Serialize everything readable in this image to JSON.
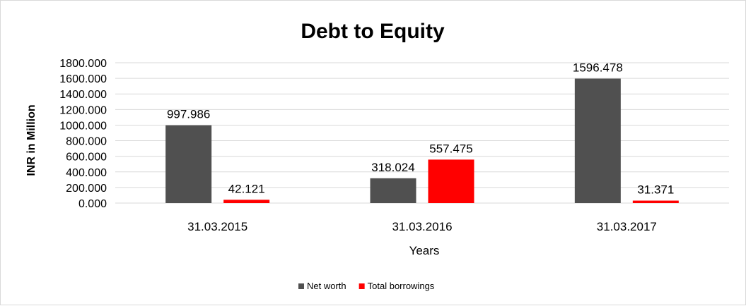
{
  "chart_data": {
    "type": "bar",
    "title": "Debt to Equity",
    "xlabel": "Years",
    "ylabel": "INR in Million",
    "categories": [
      "31.03.2015",
      "31.03.2016",
      "31.03.2017"
    ],
    "series": [
      {
        "name": "Net worth",
        "color": "#505050",
        "values": [
          997.986,
          318.024,
          1596.478
        ],
        "labels": [
          "997.986",
          "318.024",
          "1596.478"
        ]
      },
      {
        "name": "Total borrowings",
        "color": "#ff0000",
        "values": [
          42.121,
          557.475,
          31.371
        ],
        "labels": [
          "42.121",
          "557.475",
          "31.371"
        ]
      }
    ],
    "ylim": [
      0,
      1800
    ],
    "yticks": [
      "0.000",
      "200.000",
      "400.000",
      "600.000",
      "800.000",
      "1000.000",
      "1200.000",
      "1400.000",
      "1600.000",
      "1800.000"
    ],
    "grid": true,
    "legend_position": "bottom"
  }
}
